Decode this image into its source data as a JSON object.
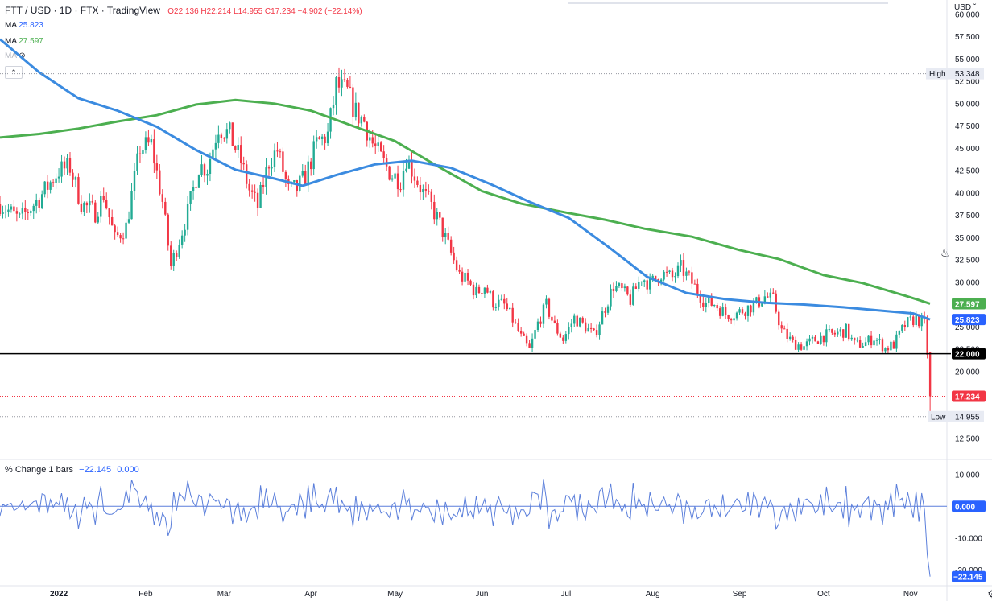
{
  "header": {
    "symbol": "FTT / USD · 1D · FTX · TradingView",
    "ohlc": "O22.136 H22.214 L14.955 C17.234 −4.902 (−22.14%)",
    "ma1_label": "MA",
    "ma1_value": "25.823",
    "ma2_label": "MA",
    "ma2_value": "27.597",
    "ma3_label": "MA",
    "hide_icon": "eye-off-icon",
    "collapse_icon": "chevron-up-icon"
  },
  "axis": {
    "currency": "USD",
    "currency_icon": "chevron-down-icon",
    "settings_icon": "gear-icon",
    "flame_icon": "flame-icon"
  },
  "indicator": {
    "label": "% Change 1 bars",
    "v1": "−22.145",
    "v2": "0.000"
  },
  "colors": {
    "up": "#22ab94",
    "down": "#f23645",
    "ma_fast": "#3b8be0",
    "ma_slow": "#4caf50",
    "pct_line": "#5b7fdb",
    "level_line": "#000000"
  },
  "chart_data": {
    "type": "candlestick",
    "title": "FTT / USD · 1D · FTX",
    "price_axis": {
      "ticks": [
        "60.000",
        "57.500",
        "55.000",
        "52.500",
        "50.000",
        "47.500",
        "45.000",
        "42.500",
        "40.000",
        "37.500",
        "35.000",
        "32.500",
        "30.000",
        "27.500",
        "25.000",
        "22.500",
        "20.000",
        "17.500",
        "15.000",
        "12.500"
      ],
      "tick_values": [
        60,
        57.5,
        55,
        52.5,
        50,
        47.5,
        45,
        42.5,
        40,
        37.5,
        35,
        32.5,
        30,
        27.5,
        25,
        22.5,
        20,
        17.5,
        15,
        12.5
      ],
      "range": [
        10.25,
        61.6
      ]
    },
    "x_axis": {
      "labels": [
        "2022",
        "Feb",
        "Mar",
        "Apr",
        "May",
        "Jun",
        "Jul",
        "Aug",
        "Sep",
        "Oct",
        "Nov"
      ],
      "label_dates": [
        "2022-01-01",
        "2022-02-01",
        "2022-03-01",
        "2022-04-01",
        "2022-05-01",
        "2022-06-01",
        "2022-07-01",
        "2022-08-01",
        "2022-09-01",
        "2022-10-01",
        "2022-11-01"
      ],
      "range": [
        "2021-12-11",
        "2022-11-14"
      ]
    },
    "markers": {
      "high_label": "High",
      "high_value": "53.348",
      "high": 53.348,
      "low_label": "Low",
      "low_value": "14.955",
      "low": 14.955,
      "last_value": "17.234",
      "last": 17.234,
      "level_value": "22.000",
      "level": 22.0,
      "ma_slow_value": "27.597",
      "ma_slow": 27.597,
      "ma_fast_value": "25.823",
      "ma_fast": 25.823
    },
    "close_path": [
      [
        "2021-12-11",
        38.8
      ],
      [
        "2021-12-18",
        37.0
      ],
      [
        "2021-12-25",
        39.4
      ],
      [
        "2022-01-01",
        42.5
      ],
      [
        "2022-01-05",
        42.9
      ],
      [
        "2022-01-09",
        38.8
      ],
      [
        "2022-01-14",
        37.8
      ],
      [
        "2022-01-17",
        39.8
      ],
      [
        "2022-01-21",
        34.8
      ],
      [
        "2022-01-25",
        36.2
      ],
      [
        "2022-01-30",
        45.0
      ],
      [
        "2022-02-03",
        45.4
      ],
      [
        "2022-02-07",
        39.0
      ],
      [
        "2022-02-10",
        31.8
      ],
      [
        "2022-02-13",
        34.8
      ],
      [
        "2022-02-16",
        37.8
      ],
      [
        "2022-02-20",
        43.0
      ],
      [
        "2022-02-23",
        42.8
      ],
      [
        "2022-02-27",
        47.5
      ],
      [
        "2022-03-03",
        46.5
      ],
      [
        "2022-03-07",
        43.5
      ],
      [
        "2022-03-10",
        40.3
      ],
      [
        "2022-03-13",
        38.5
      ],
      [
        "2022-03-17",
        43.5
      ],
      [
        "2022-03-20",
        44.8
      ],
      [
        "2022-03-24",
        40.2
      ],
      [
        "2022-03-27",
        40.5
      ],
      [
        "2022-03-30",
        41.8
      ],
      [
        "2022-04-03",
        45.5
      ],
      [
        "2022-04-07",
        46.5
      ],
      [
        "2022-04-10",
        52.0
      ],
      [
        "2022-04-14",
        51.2
      ],
      [
        "2022-04-17",
        49.0
      ],
      [
        "2022-04-20",
        48.0
      ],
      [
        "2022-04-23",
        45.5
      ],
      [
        "2022-04-27",
        43.3
      ],
      [
        "2022-04-30",
        42.0
      ],
      [
        "2022-05-03",
        41.5
      ],
      [
        "2022-05-05",
        44.0
      ],
      [
        "2022-05-08",
        42.0
      ],
      [
        "2022-05-11",
        40.0
      ],
      [
        "2022-05-14",
        38.5
      ],
      [
        "2022-05-17",
        36.5
      ],
      [
        "2022-05-21",
        33.2
      ],
      [
        "2022-05-24",
        30.8
      ],
      [
        "2022-05-27",
        30.0
      ],
      [
        "2022-05-30",
        28.8
      ],
      [
        "2022-06-02",
        29.6
      ],
      [
        "2022-06-05",
        27.8
      ],
      [
        "2022-06-09",
        27.4
      ],
      [
        "2022-06-12",
        25.8
      ],
      [
        "2022-06-15",
        23.8
      ],
      [
        "2022-06-18",
        22.4
      ],
      [
        "2022-06-21",
        25.4
      ],
      [
        "2022-06-24",
        27.4
      ],
      [
        "2022-06-27",
        25.0
      ],
      [
        "2022-06-30",
        23.6
      ],
      [
        "2022-07-04",
        26.0
      ],
      [
        "2022-07-08",
        25.0
      ],
      [
        "2022-07-11",
        24.0
      ],
      [
        "2022-07-15",
        27.2
      ],
      [
        "2022-07-18",
        29.6
      ],
      [
        "2022-07-21",
        29.0
      ],
      [
        "2022-07-24",
        28.0
      ],
      [
        "2022-07-28",
        30.6
      ],
      [
        "2022-07-31",
        29.8
      ],
      [
        "2022-08-04",
        31.0
      ],
      [
        "2022-08-08",
        30.5
      ],
      [
        "2022-08-11",
        31.6
      ],
      [
        "2022-08-14",
        30.4
      ],
      [
        "2022-08-17",
        29.0
      ],
      [
        "2022-08-20",
        27.6
      ],
      [
        "2022-08-23",
        27.6
      ],
      [
        "2022-08-27",
        26.4
      ],
      [
        "2022-08-31",
        26.5
      ],
      [
        "2022-09-03",
        27.0
      ],
      [
        "2022-09-07",
        27.6
      ],
      [
        "2022-09-10",
        28.4
      ],
      [
        "2022-09-13",
        28.0
      ],
      [
        "2022-09-16",
        24.6
      ],
      [
        "2022-09-20",
        23.2
      ],
      [
        "2022-09-24",
        22.8
      ],
      [
        "2022-09-27",
        23.4
      ],
      [
        "2022-10-01",
        24.0
      ],
      [
        "2022-10-05",
        24.2
      ],
      [
        "2022-10-09",
        24.6
      ],
      [
        "2022-10-12",
        23.0
      ],
      [
        "2022-10-16",
        23.2
      ],
      [
        "2022-10-19",
        23.8
      ],
      [
        "2022-10-23",
        22.6
      ],
      [
        "2022-10-26",
        23.0
      ],
      [
        "2022-10-30",
        25.2
      ],
      [
        "2022-11-03",
        26.0
      ],
      [
        "2022-11-06",
        25.2
      ],
      [
        "2022-11-07",
        22.1
      ],
      [
        "2022-11-08",
        17.234
      ]
    ],
    "ma_fast_path": [
      [
        "2021-12-11",
        57.2
      ],
      [
        "2021-12-25",
        53.5
      ],
      [
        "2022-01-08",
        50.6
      ],
      [
        "2022-01-22",
        49.2
      ],
      [
        "2022-02-05",
        47.4
      ],
      [
        "2022-02-19",
        44.8
      ],
      [
        "2022-03-05",
        42.6
      ],
      [
        "2022-03-19",
        41.6
      ],
      [
        "2022-03-29",
        40.8
      ],
      [
        "2022-04-10",
        42.0
      ],
      [
        "2022-04-24",
        43.2
      ],
      [
        "2022-05-07",
        43.6
      ],
      [
        "2022-05-21",
        42.8
      ],
      [
        "2022-06-04",
        41.0
      ],
      [
        "2022-06-18",
        39.0
      ],
      [
        "2022-07-02",
        37.2
      ],
      [
        "2022-07-16",
        34.0
      ],
      [
        "2022-07-30",
        30.6
      ],
      [
        "2022-08-13",
        28.8
      ],
      [
        "2022-08-27",
        28.1
      ],
      [
        "2022-09-10",
        27.7
      ],
      [
        "2022-09-24",
        27.5
      ],
      [
        "2022-10-08",
        27.2
      ],
      [
        "2022-10-22",
        26.8
      ],
      [
        "2022-11-02",
        26.5
      ],
      [
        "2022-11-08",
        25.823
      ]
    ],
    "ma_slow_path": [
      [
        "2021-12-11",
        46.2
      ],
      [
        "2021-12-25",
        46.6
      ],
      [
        "2022-01-08",
        47.2
      ],
      [
        "2022-01-22",
        48.0
      ],
      [
        "2022-02-05",
        48.7
      ],
      [
        "2022-02-19",
        49.9
      ],
      [
        "2022-03-05",
        50.4
      ],
      [
        "2022-03-19",
        50.0
      ],
      [
        "2022-04-01",
        49.2
      ],
      [
        "2022-04-15",
        47.6
      ],
      [
        "2022-05-01",
        45.8
      ],
      [
        "2022-05-15",
        43.2
      ],
      [
        "2022-06-01",
        40.2
      ],
      [
        "2022-06-15",
        38.8
      ],
      [
        "2022-07-01",
        37.8
      ],
      [
        "2022-07-15",
        37.0
      ],
      [
        "2022-07-29",
        36.0
      ],
      [
        "2022-08-15",
        35.1
      ],
      [
        "2022-09-01",
        33.6
      ],
      [
        "2022-09-15",
        32.6
      ],
      [
        "2022-10-01",
        30.8
      ],
      [
        "2022-10-15",
        29.9
      ],
      [
        "2022-10-30",
        28.5
      ],
      [
        "2022-11-08",
        27.597
      ]
    ],
    "pct_axis": {
      "ticks": [
        "10.000",
        "-10.000",
        "-20.000"
      ],
      "tick_values": [
        10,
        -10,
        -20
      ],
      "range": [
        -25,
        14.5
      ],
      "last_value": "0.000",
      "current_value": "−22.145",
      "current": -22.145
    }
  }
}
